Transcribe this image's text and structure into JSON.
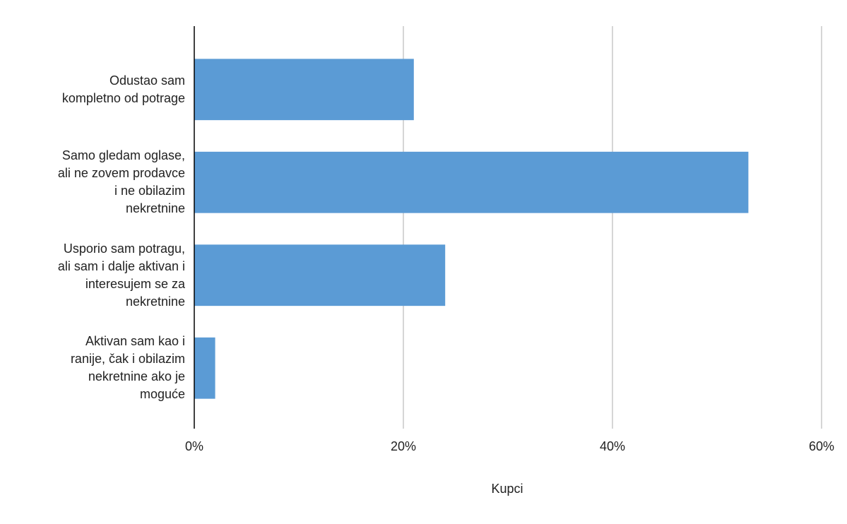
{
  "chart_data": {
    "type": "barh",
    "x_label": "Kupci",
    "categories": [
      "Odustao sam\nkompletno od potrage",
      "Samo gledam oglase,\nali ne zovem prodavce\ni ne obilazim\nnekretnine",
      "Usporio sam potragu,\nali sam i dalje aktivan i\ninteresujem se za\nnekretnine",
      "Aktivan sam kao i\nranije, čak i obilazim\nnekretnine ako je\nmoguće"
    ],
    "values": [
      21,
      53,
      24,
      2
    ],
    "color": "#5b9bd5",
    "xlim": [
      0,
      60
    ],
    "xticks": [
      {
        "value": 0,
        "label": "0%"
      },
      {
        "value": 20,
        "label": "20%"
      },
      {
        "value": 40,
        "label": "40%"
      },
      {
        "value": 60,
        "label": "60%"
      }
    ],
    "grid": true
  }
}
